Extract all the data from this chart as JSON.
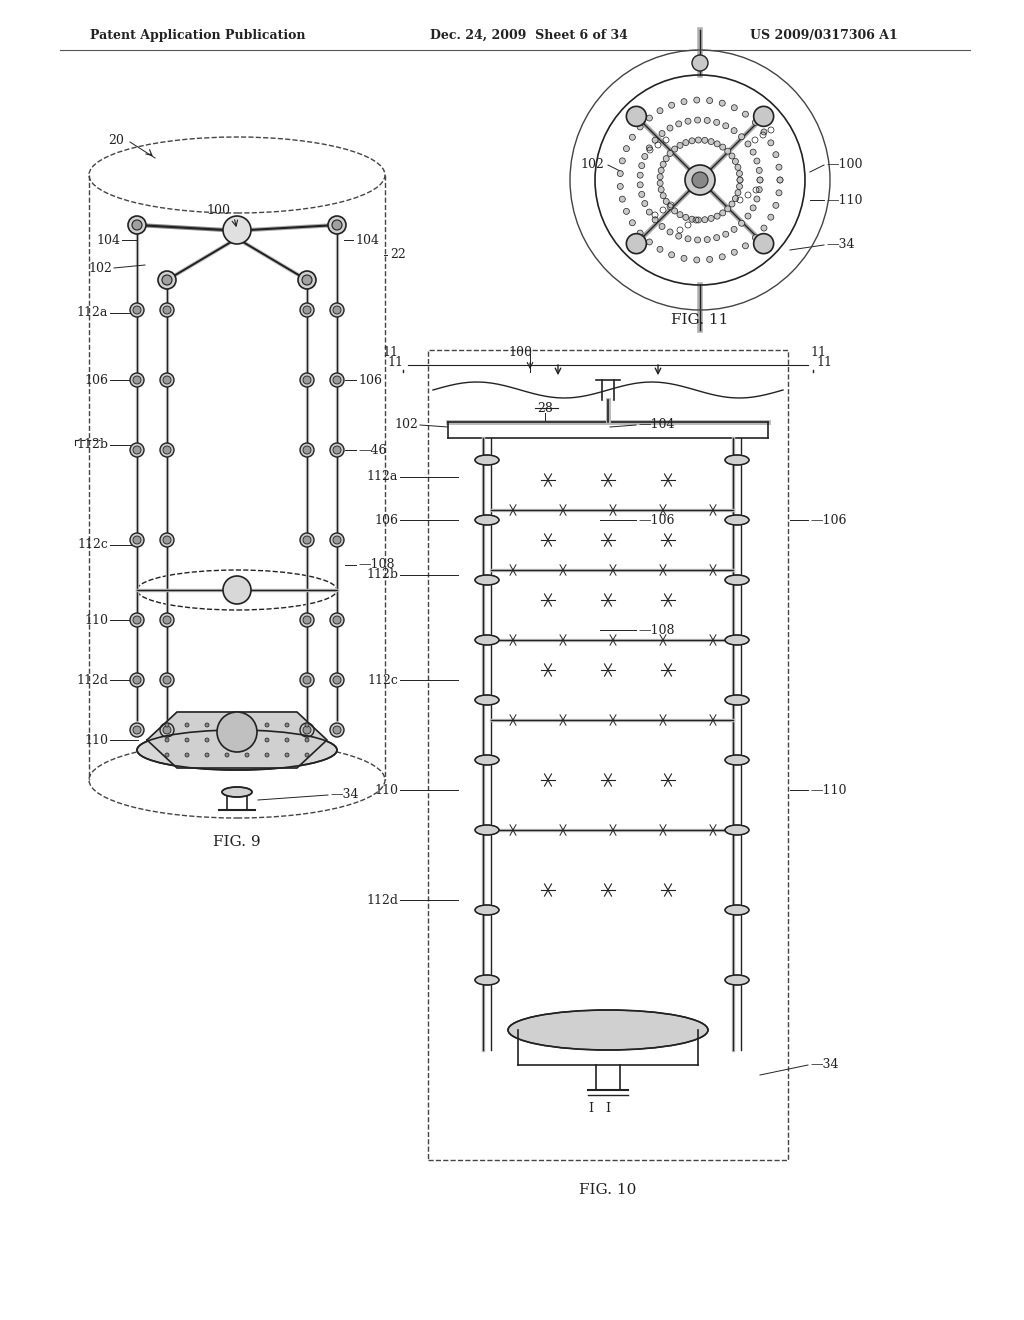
{
  "background_color": "#ffffff",
  "header_left": "Patent Application Publication",
  "header_center": "Dec. 24, 2009  Sheet 6 of 34",
  "header_right": "US 2009/0317306 A1",
  "fig9_label": "FIG. 9",
  "fig10_label": "FIG. 10",
  "fig11_label": "FIG. 11",
  "line_color": "#222222",
  "dashed_color": "#444444",
  "label_fontsize": 9,
  "header_fontsize": 9,
  "fig_label_fontsize": 11
}
